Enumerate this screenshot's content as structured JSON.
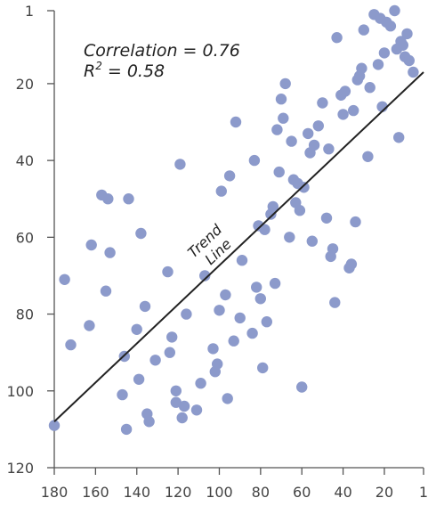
{
  "chart_data": {
    "type": "scatter",
    "title": "",
    "xlabel": "",
    "ylabel": "",
    "xlim": [
      180,
      1
    ],
    "ylim": [
      120,
      1
    ],
    "x_reversed": true,
    "y_reversed": true,
    "xticks": [
      "180",
      "160",
      "140",
      "120",
      "100",
      "80",
      "60",
      "40",
      "20",
      "1"
    ],
    "yticks": [
      "1",
      "20",
      "40",
      "60",
      "80",
      "100",
      "120"
    ],
    "annotation": {
      "correlation": "Correlation = 0.76",
      "r2_prefix": "R",
      "r2_sup": "2",
      "r2_suffix": " = 0.58"
    },
    "trend_line": {
      "label_line1": "Trend",
      "label_line2": "Line",
      "from": [
        180,
        108
      ],
      "to": [
        1,
        17
      ]
    },
    "colors": {
      "point": "#8c9acb",
      "line": "#222222",
      "axis": "#555555"
    },
    "points": [
      [
        180,
        109
      ],
      [
        175,
        71
      ],
      [
        172,
        88
      ],
      [
        163,
        83
      ],
      [
        162,
        62
      ],
      [
        157,
        49
      ],
      [
        155,
        74
      ],
      [
        154,
        50
      ],
      [
        153,
        64
      ],
      [
        147,
        101
      ],
      [
        146,
        91
      ],
      [
        145,
        110
      ],
      [
        144,
        50
      ],
      [
        140,
        84
      ],
      [
        139,
        97
      ],
      [
        138,
        59
      ],
      [
        136,
        78
      ],
      [
        135,
        106
      ],
      [
        134,
        108
      ],
      [
        131,
        92
      ],
      [
        125,
        69
      ],
      [
        124,
        90
      ],
      [
        123,
        86
      ],
      [
        121,
        103
      ],
      [
        121,
        100
      ],
      [
        119,
        41
      ],
      [
        118,
        107
      ],
      [
        117,
        104
      ],
      [
        116,
        80
      ],
      [
        111,
        105
      ],
      [
        109,
        98
      ],
      [
        107,
        70
      ],
      [
        103,
        89
      ],
      [
        102,
        95
      ],
      [
        101,
        93
      ],
      [
        100,
        79
      ],
      [
        99,
        48
      ],
      [
        97,
        75
      ],
      [
        96,
        102
      ],
      [
        95,
        44
      ],
      [
        93,
        87
      ],
      [
        92,
        30
      ],
      [
        90,
        81
      ],
      [
        89,
        66
      ],
      [
        84,
        85
      ],
      [
        83,
        40
      ],
      [
        82,
        73
      ],
      [
        81,
        57
      ],
      [
        80,
        76
      ],
      [
        79,
        94
      ],
      [
        78,
        58
      ],
      [
        77,
        82
      ],
      [
        75,
        54
      ],
      [
        74,
        52
      ],
      [
        73,
        72
      ],
      [
        72,
        32
      ],
      [
        71,
        43
      ],
      [
        70,
        24
      ],
      [
        69,
        29
      ],
      [
        68,
        20
      ],
      [
        66,
        60
      ],
      [
        65,
        35
      ],
      [
        64,
        45
      ],
      [
        63,
        51
      ],
      [
        62,
        46
      ],
      [
        61,
        53
      ],
      [
        60,
        99
      ],
      [
        59,
        47
      ],
      [
        57,
        33
      ],
      [
        56,
        38
      ],
      [
        55,
        61
      ],
      [
        54,
        36
      ],
      [
        52,
        31
      ],
      [
        50,
        25
      ],
      [
        48,
        55
      ],
      [
        47,
        37
      ],
      [
        46,
        65
      ],
      [
        45,
        63
      ],
      [
        44,
        77
      ],
      [
        43,
        8
      ],
      [
        41,
        23
      ],
      [
        40,
        28
      ],
      [
        39,
        22
      ],
      [
        37,
        68
      ],
      [
        36,
        67
      ],
      [
        35,
        27
      ],
      [
        34,
        56
      ],
      [
        33,
        19
      ],
      [
        32,
        18
      ],
      [
        31,
        16
      ],
      [
        30,
        6
      ],
      [
        28,
        39
      ],
      [
        27,
        21
      ],
      [
        25,
        2
      ],
      [
        23,
        15
      ],
      [
        22,
        3
      ],
      [
        21,
        26
      ],
      [
        20,
        12
      ],
      [
        19,
        4
      ],
      [
        17,
        5
      ],
      [
        15,
        1
      ],
      [
        14,
        11
      ],
      [
        13,
        34
      ],
      [
        12,
        9
      ],
      [
        11,
        10
      ],
      [
        10,
        13
      ],
      [
        9,
        7
      ],
      [
        8,
        14
      ],
      [
        6,
        17
      ]
    ]
  }
}
